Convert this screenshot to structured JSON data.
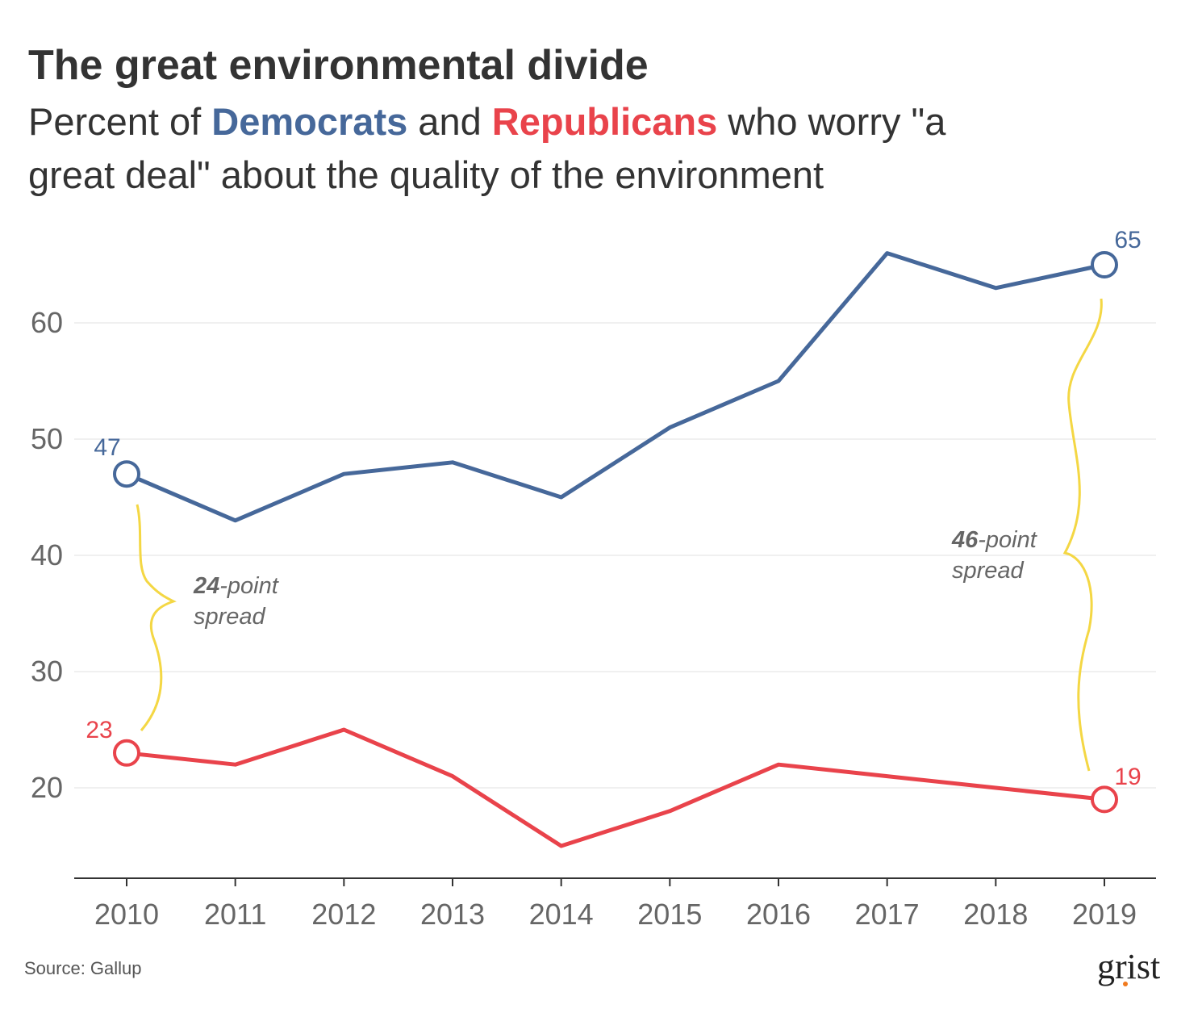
{
  "header": {
    "title": "The great environmental divide",
    "subtitle": {
      "part1": "Percent of ",
      "dem": "Democrats",
      "part2": " and ",
      "rep": "Republicans",
      "part3": " who worry \"a",
      "line2": "great deal\" about the quality of the environment"
    }
  },
  "colors": {
    "democrats": "#46689a",
    "republicans": "#e9434b",
    "brace": "#f4d744",
    "grid": "#ececec",
    "axis": "#333333"
  },
  "chart_data": {
    "type": "line",
    "x": [
      "2010",
      "2011",
      "2012",
      "2013",
      "2014",
      "2015",
      "2016",
      "2017",
      "2018",
      "2019"
    ],
    "series": [
      {
        "name": "Democrats",
        "values": [
          47,
          43,
          47,
          48,
          45,
          51,
          55,
          66,
          63,
          65
        ]
      },
      {
        "name": "Republicans",
        "values": [
          23,
          22,
          25,
          21,
          15,
          18,
          22,
          21,
          20,
          19
        ]
      }
    ],
    "yticks": [
      "20",
      "30",
      "40",
      "50",
      "60"
    ],
    "ylim": [
      12,
      68
    ],
    "grid": true,
    "labels": {
      "dem_start": "47",
      "dem_end": "65",
      "rep_start": "23",
      "rep_end": "19"
    },
    "annotations": [
      {
        "bold": "24",
        "rest": "-point",
        "line2": "spread"
      },
      {
        "bold": "46",
        "rest": "-point",
        "line2": "spread"
      }
    ]
  },
  "footer": {
    "source": "Source: Gallup",
    "logo": "grist"
  }
}
